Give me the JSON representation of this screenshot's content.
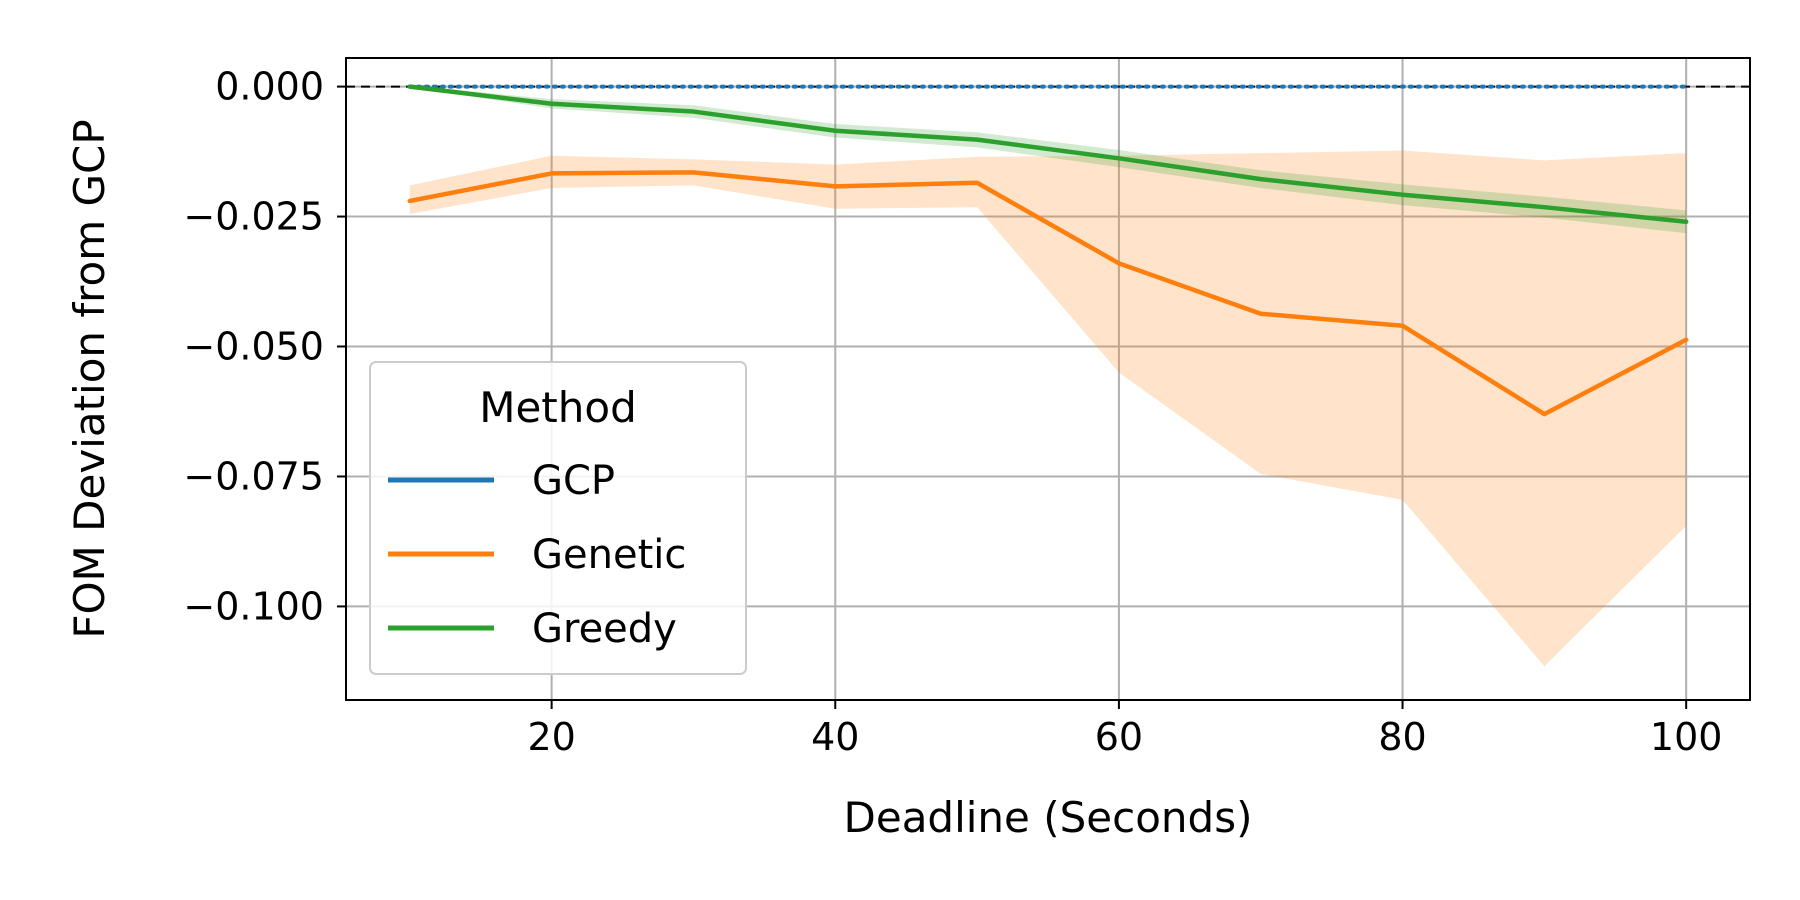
{
  "chart_data": {
    "type": "line",
    "title": "",
    "xlabel": "Deadline (Seconds)",
    "ylabel": "FOM Deviation from GCP",
    "xlim": [
      5.5,
      104.5
    ],
    "ylim": [
      -0.118,
      0.0055
    ],
    "xticks": [
      20,
      40,
      60,
      80,
      100
    ],
    "xtick_labels": [
      "20",
      "40",
      "60",
      "80",
      "100"
    ],
    "yticks": [
      0.0,
      -0.025,
      -0.05,
      -0.075,
      -0.1
    ],
    "ytick_labels": [
      "0.000",
      "−0.025",
      "−0.050",
      "−0.075",
      "−0.100"
    ],
    "grid": true,
    "reference_line": {
      "y": 0.0,
      "style": "dashed",
      "color": "#000000"
    },
    "x": [
      10,
      20,
      30,
      40,
      50,
      60,
      70,
      80,
      90,
      100
    ],
    "series": [
      {
        "name": "GCP",
        "color": "#1f77b4",
        "style": "dotted",
        "values": [
          0,
          0,
          0,
          0,
          0,
          0,
          0,
          0,
          0,
          0
        ]
      },
      {
        "name": "Genetic",
        "color": "#ff7f0e",
        "values": [
          -0.022,
          -0.0167,
          -0.0165,
          -0.0192,
          -0.0185,
          -0.034,
          -0.0437,
          -0.046,
          -0.063,
          -0.0487
        ],
        "band_lower": [
          -0.0245,
          -0.0195,
          -0.019,
          -0.0235,
          -0.0232,
          -0.055,
          -0.0745,
          -0.0795,
          -0.1115,
          -0.0845
        ],
        "band_upper": [
          -0.019,
          -0.0133,
          -0.014,
          -0.015,
          -0.0135,
          -0.0133,
          -0.0128,
          -0.0123,
          -0.0142,
          -0.0128
        ]
      },
      {
        "name": "Greedy",
        "color": "#2ca02c",
        "values": [
          0.0,
          -0.0033,
          -0.0048,
          -0.0085,
          -0.0102,
          -0.0138,
          -0.0178,
          -0.0208,
          -0.0232,
          -0.026
        ],
        "band_lower": [
          -0.0002,
          -0.0042,
          -0.006,
          -0.0098,
          -0.0117,
          -0.0155,
          -0.0195,
          -0.0228,
          -0.0252,
          -0.0282
        ],
        "band_upper": [
          0.0002,
          -0.0024,
          -0.0036,
          -0.0072,
          -0.0088,
          -0.0122,
          -0.0161,
          -0.0188,
          -0.0212,
          -0.0238
        ]
      }
    ],
    "legend": {
      "title": "Method",
      "position": "lower-left",
      "entries": [
        "GCP",
        "Genetic",
        "Greedy"
      ]
    }
  }
}
